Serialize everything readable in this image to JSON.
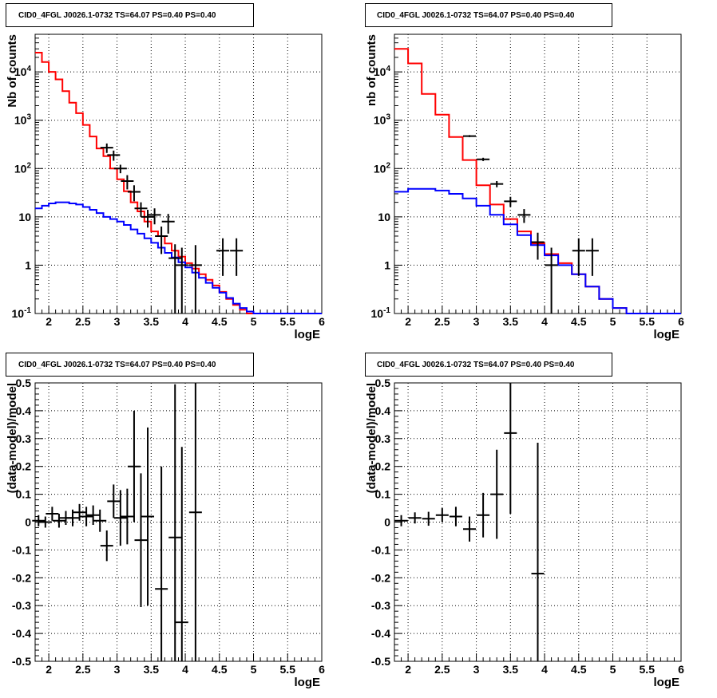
{
  "colors": {
    "data": "#000000",
    "total_model": "#ff0000",
    "source_model": "#0000ff",
    "grid": "#000000"
  },
  "chart_data": [
    {
      "type": "line",
      "title": "CID0_4FGL J0026.1-0732 TS=64.07 PS=0.40 PS=0.40",
      "xlabel": "logE",
      "ylabel": "Nb of counts",
      "xlim": [
        1.8,
        6.0
      ],
      "ylim": [
        0.1,
        60000
      ],
      "yscale": "log",
      "grid": true,
      "xticks": [
        "2",
        "2.5",
        "3",
        "3.5",
        "4",
        "4.5",
        "5",
        "5.5",
        "6"
      ],
      "yticks": [
        "10^-1",
        "1",
        "10",
        "10^2",
        "10^3",
        "10^4"
      ],
      "series": [
        {
          "role": "total_model",
          "style": "step",
          "bin_edges": [
            1.8,
            1.9,
            2.0,
            2.1,
            2.2,
            2.3,
            2.4,
            2.5,
            2.6,
            2.7,
            2.8,
            2.9,
            3.0,
            3.1,
            3.2,
            3.3,
            3.4,
            3.5,
            3.6,
            3.7,
            3.8,
            3.9,
            4.0,
            4.1,
            4.2,
            4.3,
            4.4,
            4.5,
            4.6,
            4.7,
            4.8,
            4.9,
            5.0,
            5.1,
            5.2,
            5.3,
            5.4,
            5.5,
            5.6,
            5.7,
            5.8,
            5.9,
            6.0
          ],
          "values": [
            25000,
            16000,
            10000,
            7000,
            4000,
            2300,
            1400,
            800,
            460,
            260,
            180,
            100,
            60,
            34,
            20,
            13,
            8,
            5,
            4,
            2.8,
            2,
            1.5,
            1.1,
            0.85,
            0.65,
            0.5,
            0.38,
            0.28,
            0.2,
            0.15,
            0.12,
            0.1,
            0.1,
            0.1,
            0.1,
            0.1,
            0.1,
            0.1,
            0.1,
            0.1,
            0.1,
            0.1
          ]
        },
        {
          "role": "source_model",
          "style": "step",
          "bin_edges": [
            1.8,
            1.9,
            2.0,
            2.1,
            2.2,
            2.3,
            2.4,
            2.5,
            2.6,
            2.7,
            2.8,
            2.9,
            3.0,
            3.1,
            3.2,
            3.3,
            3.4,
            3.5,
            3.6,
            3.7,
            3.8,
            3.9,
            4.0,
            4.1,
            4.2,
            4.3,
            4.4,
            4.5,
            4.6,
            4.7,
            4.8,
            4.9,
            5.0,
            5.1,
            5.2,
            5.3,
            5.4,
            5.5,
            5.6,
            5.7,
            5.8,
            5.9,
            6.0
          ],
          "values": [
            15,
            17,
            19,
            20,
            20,
            19,
            18,
            16,
            14,
            12,
            10,
            9,
            8,
            6.8,
            5.5,
            4.5,
            3.6,
            2.9,
            2.3,
            1.8,
            1.45,
            1.15,
            0.9,
            0.7,
            0.55,
            0.43,
            0.34,
            0.27,
            0.21,
            0.16,
            0.13,
            0.11,
            0.1,
            0.1,
            0.1,
            0.1,
            0.1,
            0.1,
            0.1,
            0.1,
            0.1,
            0.1
          ]
        },
        {
          "role": "data",
          "style": "points",
          "x": [
            2.85,
            2.95,
            3.05,
            3.15,
            3.25,
            3.35,
            3.45,
            3.55,
            3.65,
            3.75,
            3.85,
            3.95,
            4.15,
            4.55,
            4.75
          ],
          "y": [
            270,
            190,
            100,
            55,
            33,
            15,
            10,
            11,
            4,
            8,
            1.4,
            1,
            1,
            2,
            2
          ],
          "err_low": [
            60,
            45,
            20,
            18,
            12,
            5,
            4,
            4,
            2.3,
            3.5,
            1.3,
            0.95,
            0.95,
            1.4,
            1.4
          ],
          "err_high": [
            60,
            45,
            20,
            18,
            12,
            5,
            4,
            4,
            2.3,
            3.5,
            1.3,
            1.3,
            1.6,
            1.6,
            1.6
          ]
        }
      ]
    },
    {
      "type": "line",
      "title": "CID0_4FGL J0026.1-0732 TS=64.07 PS=0.40 PS=0.40",
      "xlabel": "logE",
      "ylabel": "nb of counts",
      "xlim": [
        1.8,
        6.0
      ],
      "ylim": [
        0.1,
        60000
      ],
      "yscale": "log",
      "grid": true,
      "xticks": [
        "2",
        "2.5",
        "3",
        "3.5",
        "4",
        "4.5",
        "5",
        "5.5",
        "6"
      ],
      "yticks": [
        "10^-1",
        "1",
        "10",
        "10^2",
        "10^3",
        "10^4"
      ],
      "series": [
        {
          "role": "total_model",
          "style": "step",
          "bin_edges": [
            1.8,
            2.0,
            2.2,
            2.4,
            2.6,
            2.8,
            3.0,
            3.2,
            3.4,
            3.6,
            3.8,
            4.0,
            4.2,
            4.4,
            4.6,
            4.8,
            5.0,
            5.2,
            5.4,
            5.6,
            5.8,
            6.0
          ],
          "values": [
            30000,
            15000,
            3500,
            1300,
            450,
            150,
            45,
            18,
            9,
            5,
            2.8,
            1.7,
            1.1,
            0.65,
            0.36,
            0.2,
            0.13,
            0.1,
            0.1,
            0.1,
            0.1
          ]
        },
        {
          "role": "source_model",
          "style": "step",
          "bin_edges": [
            1.8,
            2.0,
            2.2,
            2.4,
            2.6,
            2.8,
            3.0,
            3.2,
            3.4,
            3.6,
            3.8,
            4.0,
            4.2,
            4.4,
            4.6,
            4.8,
            5.0,
            5.2,
            5.4,
            5.6,
            5.8,
            6.0
          ],
          "values": [
            33,
            38,
            38,
            35,
            30,
            24,
            17,
            11,
            7,
            4.2,
            2.6,
            1.6,
            1.0,
            0.65,
            0.36,
            0.2,
            0.13,
            0.1,
            0.1,
            0.1,
            0.1
          ]
        },
        {
          "role": "data",
          "style": "points",
          "x": [
            2.9,
            3.1,
            3.3,
            3.5,
            3.7,
            3.9,
            4.1,
            4.5,
            4.7
          ],
          "y": [
            470,
            155,
            48,
            21,
            11,
            3,
            1,
            2,
            2
          ],
          "err_low": [
            22,
            12,
            7,
            5,
            3.5,
            1.7,
            0.95,
            1.4,
            1.4
          ],
          "err_high": [
            22,
            12,
            7,
            5,
            3.5,
            1.7,
            1.3,
            1.6,
            1.6
          ]
        }
      ]
    },
    {
      "type": "scatter",
      "title": "CID0_4FGL J0026.1-0732 TS=64.07 PS=0.40 PS=0.40",
      "xlabel": "logE",
      "ylabel": "(data-model)/model",
      "xlim": [
        1.8,
        6.0
      ],
      "ylim": [
        -0.5,
        0.5
      ],
      "grid": true,
      "xticks": [
        "2",
        "2.5",
        "3",
        "3.5",
        "4",
        "4.5",
        "5",
        "5.5",
        "6"
      ],
      "yticks": [
        "-0.5",
        "-0.4",
        "-0.3",
        "-0.2",
        "-0.1",
        "0",
        "0.1",
        "0.2",
        "0.3",
        "0.4",
        "0.5"
      ],
      "series": [
        {
          "role": "data",
          "style": "points",
          "x": [
            1.85,
            1.95,
            2.05,
            2.15,
            2.25,
            2.35,
            2.45,
            2.55,
            2.65,
            2.75,
            2.85,
            2.95,
            3.05,
            3.15,
            3.25,
            3.35,
            3.45,
            3.65,
            3.85,
            3.95,
            4.15
          ],
          "y": [
            0.005,
            0.0,
            0.03,
            0.005,
            0.015,
            0.015,
            0.035,
            0.02,
            0.025,
            0.005,
            -0.085,
            0.075,
            0.015,
            0.02,
            0.2,
            -0.065,
            0.02,
            -0.24,
            -0.055,
            -0.36,
            0.035
          ],
          "err": [
            0.02,
            0.02,
            0.025,
            0.025,
            0.025,
            0.03,
            0.03,
            0.035,
            0.035,
            0.04,
            0.055,
            0.06,
            0.1,
            0.1,
            0.2,
            0.24,
            0.32,
            0.44,
            0.55,
            0.63,
            0.7
          ]
        }
      ]
    },
    {
      "type": "scatter",
      "title": "CID0_4FGL J0026.1-0732 TS=64.07 PS=0.40 PS=0.40",
      "xlabel": "logE",
      "ylabel": "(data-model)/model",
      "xlim": [
        1.8,
        6.0
      ],
      "ylim": [
        -0.5,
        0.5
      ],
      "grid": true,
      "xticks": [
        "2",
        "2.5",
        "3",
        "3.5",
        "4",
        "4.5",
        "5",
        "5.5",
        "6"
      ],
      "yticks": [
        "-0.5",
        "-0.4",
        "-0.3",
        "-0.2",
        "-0.1",
        "0",
        "0.1",
        "0.2",
        "0.3",
        "0.4",
        "0.5"
      ],
      "series": [
        {
          "role": "data",
          "style": "points",
          "x": [
            1.9,
            2.1,
            2.3,
            2.5,
            2.7,
            2.9,
            3.1,
            3.3,
            3.5,
            3.9
          ],
          "y": [
            0.005,
            0.015,
            0.012,
            0.025,
            0.02,
            -0.025,
            0.025,
            0.1,
            0.32,
            -0.185
          ],
          "err": [
            0.02,
            0.02,
            0.025,
            0.025,
            0.035,
            0.045,
            0.08,
            0.16,
            0.29,
            0.47
          ]
        }
      ]
    }
  ]
}
